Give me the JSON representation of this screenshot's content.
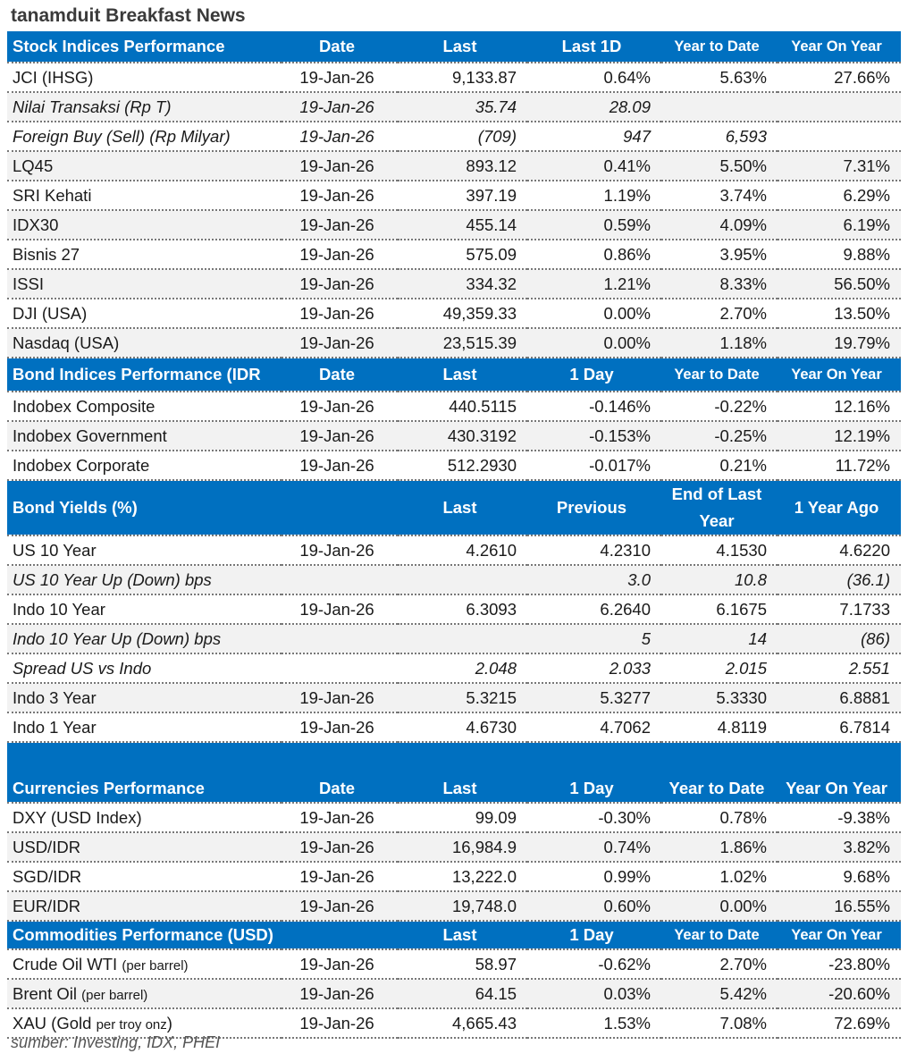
{
  "title": "tanamduit Breakfast News",
  "colors": {
    "header_bg": "#0070c0",
    "header_text": "#ffffff",
    "alt_row": "#f2f2f2"
  },
  "sections": [
    {
      "header": [
        "Stock Indices Performance",
        "Date",
        "Last",
        "Last 1D",
        "Year to Date",
        "Year On Year"
      ],
      "rows": [
        {
          "cells": [
            "JCI (IHSG)",
            "19-Jan-26",
            "9,133.87",
            "0.64%",
            "5.63%",
            "27.66%"
          ]
        },
        {
          "italic": true,
          "cells": [
            "Nilai Transaksi (Rp T)",
            "19-Jan-26",
            "35.74",
            "28.09",
            "",
            ""
          ]
        },
        {
          "italic": true,
          "cells": [
            "Foreign Buy (Sell) (Rp Milyar)",
            "19-Jan-26",
            "(709)",
            "947",
            "6,593",
            ""
          ]
        },
        {
          "cells": [
            "LQ45",
            "19-Jan-26",
            "893.12",
            "0.41%",
            "5.50%",
            "7.31%"
          ]
        },
        {
          "cells": [
            "SRI Kehati",
            "19-Jan-26",
            "397.19",
            "1.19%",
            "3.74%",
            "6.29%"
          ]
        },
        {
          "cells": [
            "IDX30",
            "19-Jan-26",
            "455.14",
            "0.59%",
            "4.09%",
            "6.19%"
          ]
        },
        {
          "cells": [
            "Bisnis 27",
            "19-Jan-26",
            "575.09",
            "0.86%",
            "3.95%",
            "9.88%"
          ]
        },
        {
          "cells": [
            "ISSI",
            "19-Jan-26",
            "334.32",
            "1.21%",
            "8.33%",
            "56.50%"
          ]
        },
        {
          "cells": [
            "DJI (USA)",
            "19-Jan-26",
            "49,359.33",
            "0.00%",
            "2.70%",
            "13.50%"
          ]
        },
        {
          "cells": [
            "Nasdaq (USA)",
            "19-Jan-26",
            "23,515.39",
            "0.00%",
            "1.18%",
            "19.79%"
          ]
        }
      ]
    },
    {
      "header": [
        "Bond Indices Performance (IDR",
        "Date",
        "Last",
        "1 Day",
        "Year to Date",
        "Year On Year"
      ],
      "rows": [
        {
          "cells": [
            "Indobex Composite",
            "19-Jan-26",
            "440.5115",
            "-0.146%",
            "-0.22%",
            "12.16%"
          ]
        },
        {
          "cells": [
            "Indobex Government",
            "19-Jan-26",
            "430.3192",
            "-0.153%",
            "-0.25%",
            "12.19%"
          ]
        },
        {
          "cells": [
            "Indobex Corporate",
            "19-Jan-26",
            "512.2930",
            "-0.017%",
            "0.21%",
            "11.72%"
          ]
        }
      ]
    },
    {
      "header": [
        "Bond Yields (%)",
        "",
        "Last",
        "Previous",
        "End of Last Year",
        "1 Year Ago"
      ],
      "rows": [
        {
          "cells": [
            "US 10 Year",
            "19-Jan-26",
            "4.2610",
            "4.2310",
            "4.1530",
            "4.6220"
          ]
        },
        {
          "italic": true,
          "cells": [
            "US 10 Year Up (Down) bps",
            "",
            "",
            "3.0",
            "10.8",
            "(36.1)"
          ]
        },
        {
          "cells": [
            "Indo 10 Year",
            "19-Jan-26",
            "6.3093",
            "6.2640",
            "6.1675",
            "7.1733"
          ]
        },
        {
          "italic": true,
          "cells": [
            "Indo 10 Year Up (Down) bps",
            "",
            "",
            "5",
            "14",
            "(86)"
          ]
        },
        {
          "italic": true,
          "cells": [
            "Spread US vs Indo",
            "",
            "2.048",
            "2.033",
            "2.015",
            "2.551"
          ]
        },
        {
          "cells": [
            "Indo 3 Year",
            "19-Jan-26",
            "5.3215",
            "5.3277",
            "5.3330",
            "6.8881"
          ]
        },
        {
          "cells": [
            "Indo 1 Year",
            "19-Jan-26",
            "4.6730",
            "4.7062",
            "4.8119",
            "6.7814"
          ]
        }
      ]
    },
    {
      "header": [
        "Currencies Performance",
        "Date",
        "Last",
        "1 Day",
        "Year to Date",
        "Year On Year"
      ],
      "rows": [
        {
          "cells": [
            "DXY (USD Index)",
            "19-Jan-26",
            "99.09",
            "-0.30%",
            "0.78%",
            "-9.38%"
          ]
        },
        {
          "cells": [
            "USD/IDR",
            "19-Jan-26",
            "16,984.9",
            "0.74%",
            "1.86%",
            "3.82%"
          ]
        },
        {
          "cells": [
            "SGD/IDR",
            "19-Jan-26",
            "13,222.0",
            "0.99%",
            "1.02%",
            "9.68%"
          ]
        },
        {
          "cells": [
            "EUR/IDR",
            "19-Jan-26",
            "19,748.0",
            "0.60%",
            "0.00%",
            "16.55%"
          ]
        }
      ]
    },
    {
      "header": [
        "Commodities Performance (USD)",
        "",
        "Last",
        "1 Day",
        "Year to Date",
        "Year On Year"
      ],
      "rows": [
        {
          "note": "(per barrel)",
          "cells": [
            "Crude Oil WTI",
            "19-Jan-26",
            "58.97",
            "-0.62%",
            "2.70%",
            "-23.80%"
          ]
        },
        {
          "note": "(per barrel)",
          "cells": [
            "Brent Oil",
            "19-Jan-26",
            "64.15",
            "0.03%",
            "5.42%",
            "-20.60%"
          ]
        },
        {
          "note": "per troy onz",
          "suffix": ")",
          "cells": [
            "XAU (Gold",
            "19-Jan-26",
            "4,665.43",
            "1.53%",
            "7.08%",
            "72.69%"
          ]
        }
      ]
    }
  ],
  "footer": "sumber: Investing, IDX, PHEI"
}
